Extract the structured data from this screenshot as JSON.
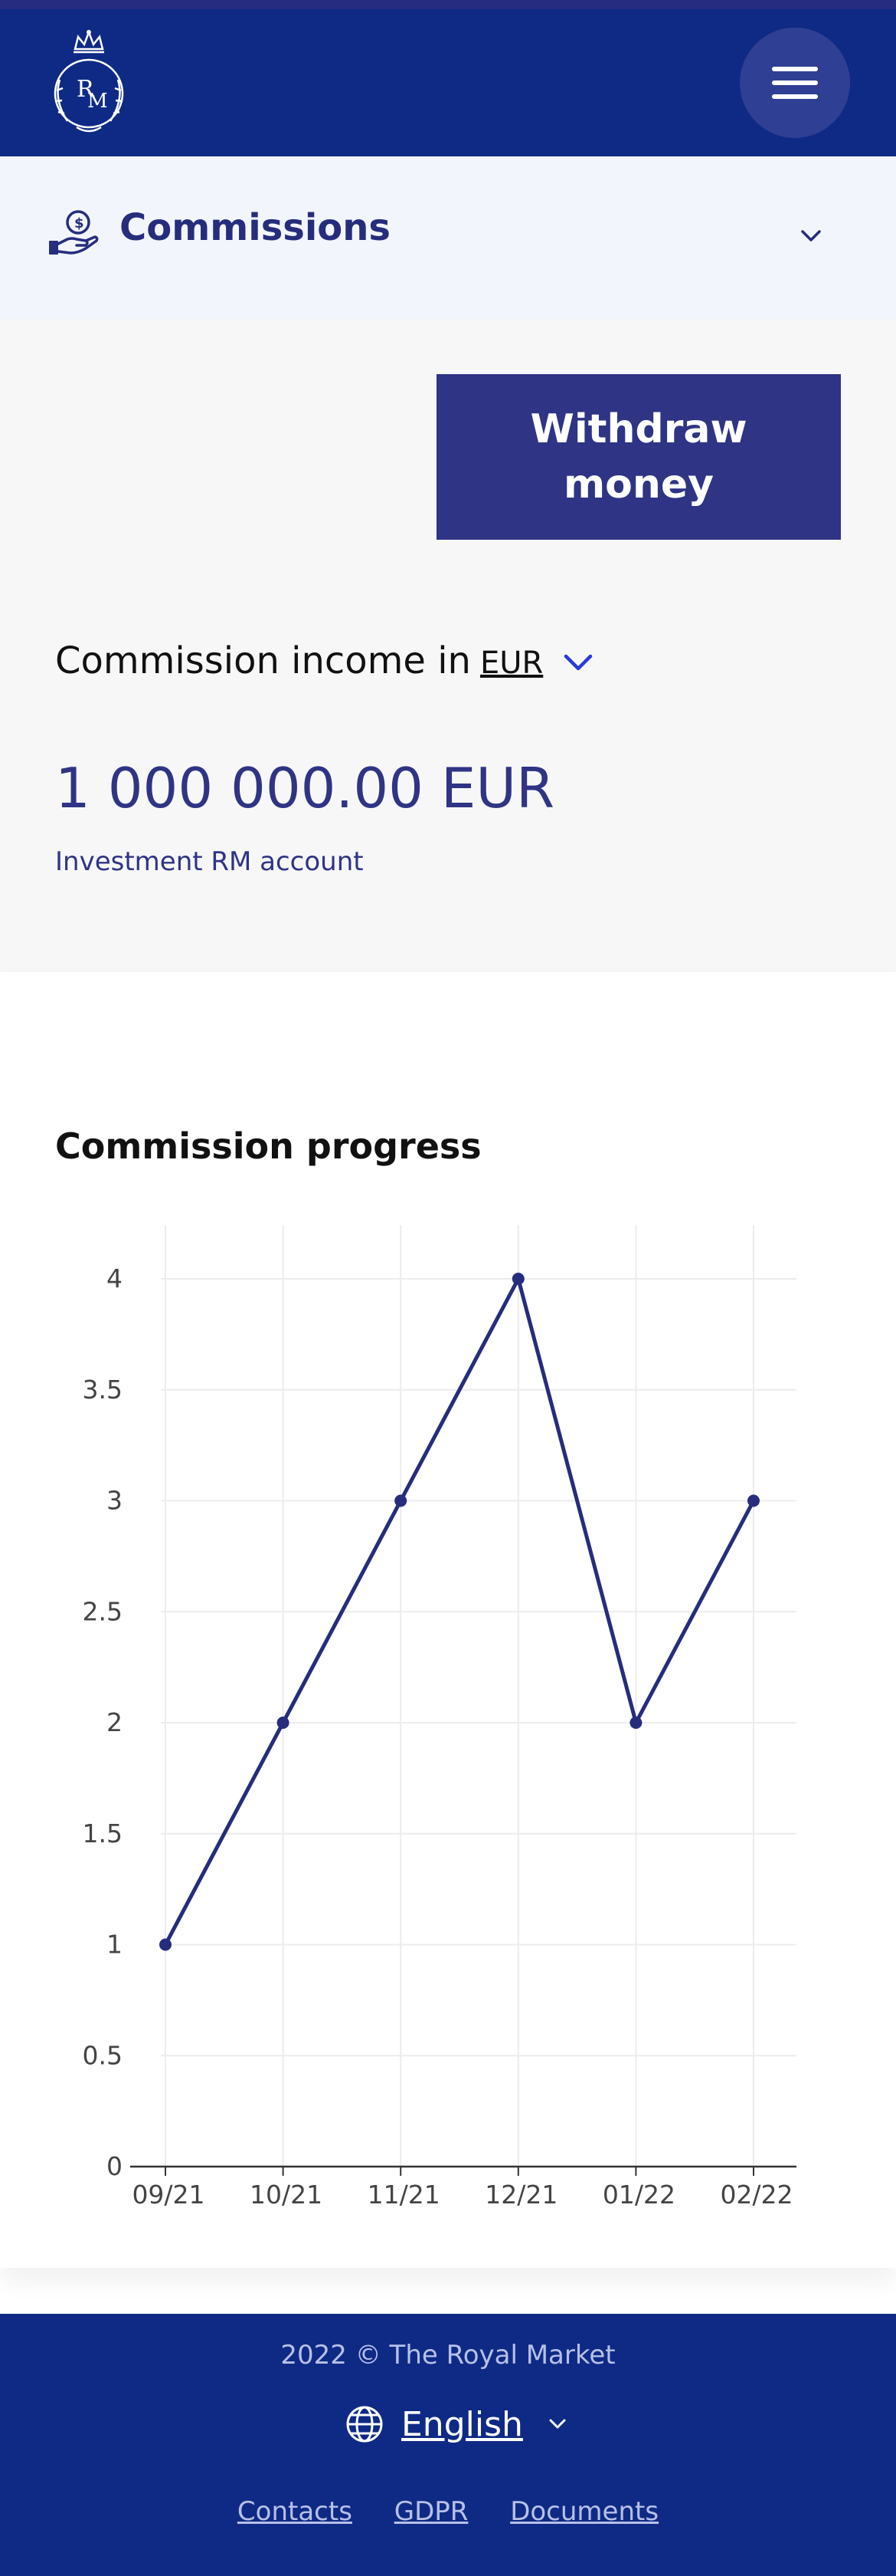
{
  "header": {
    "logo_text": "RM",
    "menu_icon": "hamburger-icon"
  },
  "section": {
    "title": "Commissions",
    "icon": "hand-coin-icon",
    "toggle_icon": "chevron-down-icon"
  },
  "summary": {
    "withdraw_label": "Withdraw money",
    "income_label": "Commission income in",
    "currency": "EUR",
    "amount": "1 000 000.00 EUR",
    "account": "Investment RM account"
  },
  "chart_section": {
    "title": "Commission progress"
  },
  "chart_data": {
    "type": "line",
    "categories": [
      "09/21",
      "10/21",
      "11/21",
      "12/21",
      "01/22",
      "02/22"
    ],
    "values": [
      1,
      2,
      3,
      4,
      2,
      3
    ],
    "yticks": [
      "0",
      "0.5",
      "1",
      "1.5",
      "2",
      "2.5",
      "3",
      "3.5",
      "4"
    ],
    "ylim": [
      0,
      4.25
    ],
    "grid": true,
    "line_color": "#262d7c"
  },
  "footer": {
    "copyright": "2022 © The Royal Market",
    "language": "English",
    "links": [
      "Contacts",
      "GDPR",
      "Documents"
    ]
  },
  "colors": {
    "header_bg": "#0f2a85",
    "accent": "#2f3485",
    "section_bg": "#f3f5fd"
  }
}
